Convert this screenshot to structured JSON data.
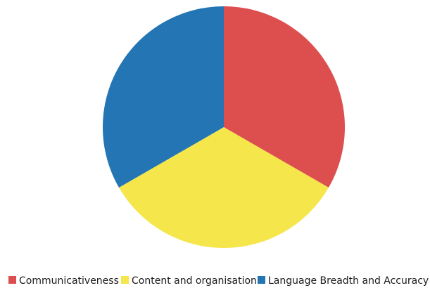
{
  "chart_data": {
    "type": "pie",
    "title": "",
    "legend_position": "bottom",
    "slices": [
      {
        "label": "Communicativeness",
        "value": 33.3,
        "color": "#dd4f4f"
      },
      {
        "label": "Content and organisation",
        "value": 33.3,
        "color": "#f5e64c"
      },
      {
        "label": "Language Breadth and Accuracy",
        "value": 33.3,
        "color": "#2375b4"
      }
    ]
  }
}
